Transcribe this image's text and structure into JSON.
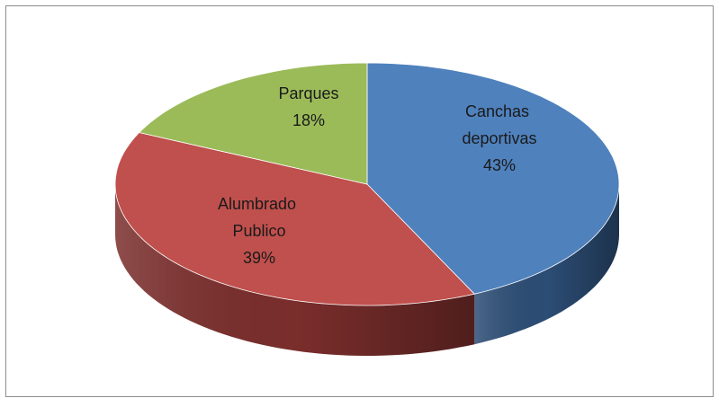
{
  "chart_data": {
    "type": "pie",
    "categories": [
      "Canchas deportivas",
      "Alumbrado Publico",
      "Parques"
    ],
    "values": [
      43,
      39,
      18
    ],
    "value_labels": [
      "43%",
      "39%",
      "18%"
    ],
    "colors": [
      "#4f81bd",
      "#c0504d",
      "#9bbb59"
    ],
    "side_colors": [
      "#2c4d75",
      "#7a2e2c",
      "#5f7a33"
    ]
  }
}
